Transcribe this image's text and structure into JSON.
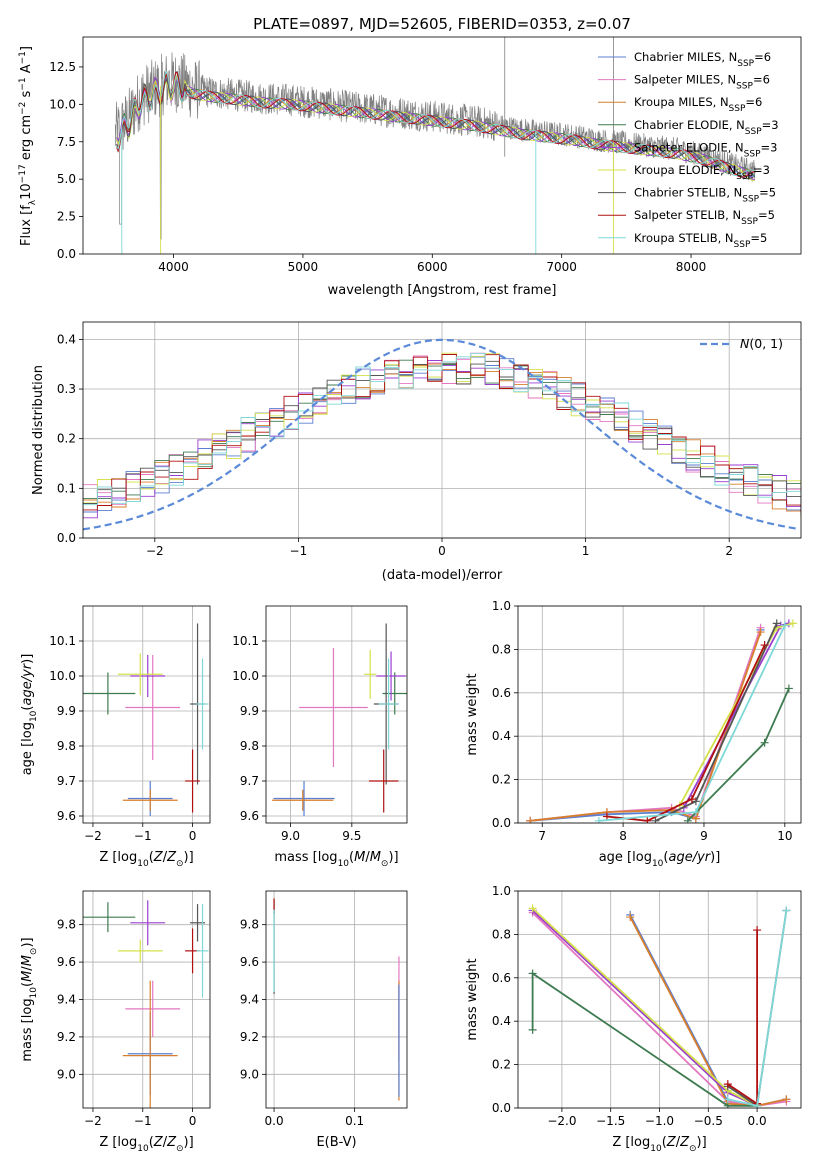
{
  "figure": {
    "title": "PLATE=0897, MJD=52605, FIBERID=0353, z=0.07"
  },
  "colors": {
    "Chabrier MILES": "#5b7fd0",
    "Salpeter MILES": "#e377c2",
    "Kroupa MILES": "#d87f2c",
    "Chabrier ELODIE": "#3e7b50",
    "Salpeter ELODIE": "#9b3fd0",
    "Kroupa ELODIE": "#d4e04a",
    "Chabrier STELIB": "#555555",
    "Salpeter STELIB": "#b01010",
    "Kroupa STELIB": "#7fd8d8",
    "data": "#808080",
    "normal": "#5b8ad8"
  },
  "chart_data": [
    {
      "id": "spectrum",
      "type": "line",
      "title": "PLATE=0897, MJD=52605, FIBERID=0353, z=0.07",
      "xlabel": "wavelength [Angstrom, rest frame]",
      "ylabel": "Flux [f$_\\lambda$10$^{-17}$ erg cm$^{-2}$ s$^{-1}$ A$^{-1}$]",
      "xlim": [
        3300,
        8850
      ],
      "ylim": [
        0,
        14.5
      ],
      "xticks": [
        4000,
        5000,
        6000,
        7000,
        8000
      ],
      "yticks": [
        0.0,
        2.5,
        5.0,
        7.5,
        10.0,
        12.5
      ],
      "legend": "top-right",
      "legend_entries": [
        "Chabrier MILES, N_SSP=6",
        "Salpeter MILES, N_SSP=6",
        "Kroupa MILES, N_SSP=6",
        "Chabrier ELODIE, N_SSP=3",
        "Salpeter ELODIE, N_SSP=3",
        "Kroupa ELODIE, N_SSP=3",
        "Chabrier STELIB, N_SSP=5",
        "Salpeter STELIB, N_SSP=5",
        "Kroupa STELIB, N_SSP=5"
      ],
      "continuum": {
        "x": [
          3550,
          3650,
          3750,
          3850,
          3950,
          4050,
          4150,
          4300,
          4500,
          4700,
          4900,
          5100,
          5300,
          5500,
          5700,
          5900,
          6100,
          6300,
          6500,
          6700,
          6900,
          7100,
          7300,
          7500,
          7700,
          7900,
          8100,
          8300,
          8500
        ],
        "y": [
          8.0,
          9.0,
          10.5,
          11.0,
          11.5,
          11.5,
          11.0,
          10.8,
          10.6,
          10.4,
          10.3,
          10.1,
          9.9,
          9.7,
          9.5,
          9.3,
          9.1,
          8.9,
          8.6,
          8.3,
          8.1,
          7.9,
          7.6,
          7.4,
          7.2,
          7.0,
          6.6,
          6.0,
          5.5
        ]
      }
    },
    {
      "id": "residuals",
      "type": "line",
      "xlabel": "(data-model)/error",
      "ylabel": "Normed distribution",
      "xlim": [
        -2.5,
        2.5
      ],
      "ylim": [
        0,
        0.435
      ],
      "xticks": [
        -2,
        -1,
        0,
        1,
        2
      ],
      "yticks": [
        0.0,
        0.1,
        0.2,
        0.3,
        0.4
      ],
      "legend": "top-right",
      "legend_entries": [
        "N(0,1)"
      ],
      "gaussian": {
        "mean": 0,
        "sigma": 1
      }
    },
    {
      "id": "age_vs_Z",
      "type": "scatter",
      "xlabel": "Z [log10(Z/Z_sun)]",
      "ylabel": "age  [log10(age/yr)]",
      "xlim": [
        -2.2,
        0.35
      ],
      "ylim": [
        9.58,
        10.2
      ],
      "xticks": [
        -2,
        -1,
        0
      ],
      "yticks": [
        9.6,
        9.7,
        9.8,
        9.9,
        10.0,
        10.1
      ],
      "points": [
        {
          "model": "Chabrier MILES",
          "x": -0.85,
          "y": 9.65,
          "xerr": 0.45,
          "yerr": 0.05
        },
        {
          "model": "Salpeter MILES",
          "x": -0.8,
          "y": 9.91,
          "xerr": 0.55,
          "yerr": 0.15
        },
        {
          "model": "Kroupa MILES",
          "x": -0.85,
          "y": 9.645,
          "xerr": 0.55,
          "yerr": 0.03
        },
        {
          "model": "Chabrier ELODIE",
          "x": -1.7,
          "y": 9.95,
          "xerr": 0.55,
          "yerr": 0.06
        },
        {
          "model": "Salpeter ELODIE",
          "x": -0.9,
          "y": 10.0,
          "xerr": 0.35,
          "yerr": 0.06
        },
        {
          "model": "Kroupa ELODIE",
          "x": -1.05,
          "y": 10.005,
          "xerr": 0.45,
          "yerr": 0.06
        },
        {
          "model": "Chabrier STELIB",
          "x": 0.1,
          "y": 9.92,
          "xerr": 0.15,
          "yerr": 0.23
        },
        {
          "model": "Salpeter STELIB",
          "x": 0.0,
          "y": 9.7,
          "xerr": 0.15,
          "yerr": 0.09
        },
        {
          "model": "Kroupa STELIB",
          "x": 0.2,
          "y": 9.92,
          "xerr": 0.12,
          "yerr": 0.13
        }
      ]
    },
    {
      "id": "age_vs_mass",
      "type": "scatter",
      "xlabel": "mass [log10(M/M_sun)]",
      "xlim": [
        8.8,
        9.95
      ],
      "ylim": [
        9.58,
        10.2
      ],
      "xticks": [
        9.0,
        9.5
      ],
      "yticks": [
        9.6,
        9.7,
        9.8,
        9.9,
        10.0,
        10.1
      ],
      "points": [
        {
          "model": "Chabrier MILES",
          "x": 9.11,
          "y": 9.65,
          "xerr": 0.25,
          "yerr": 0.05
        },
        {
          "model": "Salpeter MILES",
          "x": 9.35,
          "y": 9.91,
          "xerr": 0.28,
          "yerr": 0.17
        },
        {
          "model": "Kroupa MILES",
          "x": 9.1,
          "y": 9.645,
          "xerr": 0.25,
          "yerr": 0.03
        },
        {
          "model": "Chabrier ELODIE",
          "x": 9.85,
          "y": 9.95,
          "xerr": 0.1,
          "yerr": 0.06
        },
        {
          "model": "Salpeter ELODIE",
          "x": 9.82,
          "y": 10.0,
          "xerr": 0.12,
          "yerr": 0.07
        },
        {
          "model": "Kroupa ELODIE",
          "x": 9.65,
          "y": 10.005,
          "xerr": 0.05,
          "yerr": 0.07
        },
        {
          "model": "Chabrier STELIB",
          "x": 9.78,
          "y": 9.92,
          "xerr": 0.1,
          "yerr": 0.23
        },
        {
          "model": "Salpeter STELIB",
          "x": 9.76,
          "y": 9.7,
          "xerr": 0.12,
          "yerr": 0.09
        },
        {
          "model": "Kroupa STELIB",
          "x": 9.8,
          "y": 9.92,
          "xerr": 0.08,
          "yerr": 0.13
        }
      ]
    },
    {
      "id": "weight_vs_age",
      "type": "line",
      "xlabel": "age  [log10(age/yr)]",
      "ylabel": "mass weight",
      "xlim": [
        6.7,
        10.2
      ],
      "ylim": [
        0,
        1.0
      ],
      "xticks": [
        7,
        8,
        9,
        10
      ],
      "yticks": [
        0.0,
        0.2,
        0.4,
        0.6,
        0.8,
        1.0
      ],
      "series": [
        {
          "name": "Chabrier MILES",
          "x": [
            6.85,
            7.8,
            8.6,
            8.9,
            9.7
          ],
          "y": [
            0.01,
            0.04,
            0.05,
            0.02,
            0.89
          ]
        },
        {
          "name": "Salpeter MILES",
          "x": [
            6.85,
            7.8,
            8.6,
            8.9,
            9.7
          ],
          "y": [
            0.01,
            0.05,
            0.07,
            0.03,
            0.9
          ]
        },
        {
          "name": "Kroupa MILES",
          "x": [
            6.85,
            7.8,
            8.6,
            8.9,
            9.7
          ],
          "y": [
            0.01,
            0.05,
            0.06,
            0.02,
            0.88
          ]
        },
        {
          "name": "Chabrier ELODIE",
          "x": [
            8.8,
            9.75,
            10.05
          ],
          "y": [
            0.01,
            0.37,
            0.62
          ]
        },
        {
          "name": "Salpeter ELODIE",
          "x": [
            8.75,
            9.95,
            10.05
          ],
          "y": [
            0.07,
            0.91,
            0.92
          ]
        },
        {
          "name": "Kroupa ELODIE",
          "x": [
            8.7,
            9.9,
            10.1
          ],
          "y": [
            0.08,
            0.9,
            0.92
          ]
        },
        {
          "name": "Chabrier STELIB",
          "x": [
            8.4,
            8.9,
            9.9
          ],
          "y": [
            0.01,
            0.1,
            0.92
          ]
        },
        {
          "name": "Salpeter STELIB",
          "x": [
            7.8,
            8.3,
            8.85,
            9.75
          ],
          "y": [
            0.03,
            0.01,
            0.11,
            0.82
          ]
        },
        {
          "name": "Kroupa STELIB",
          "x": [
            7.7,
            8.9,
            10.0
          ],
          "y": [
            0.01,
            0.05,
            0.91
          ]
        }
      ]
    },
    {
      "id": "mass_vs_Z",
      "type": "scatter",
      "xlabel": "Z [log10(Z/Z_sun)]",
      "ylabel": "mass [log10(M/M_sun)]",
      "xlim": [
        -2.2,
        0.35
      ],
      "ylim": [
        8.82,
        9.98
      ],
      "xticks": [
        -2,
        -1,
        0
      ],
      "yticks": [
        9.0,
        9.2,
        9.4,
        9.6,
        9.8
      ],
      "points": [
        {
          "model": "Chabrier MILES",
          "x": -0.85,
          "y": 9.11,
          "xerr": 0.45,
          "yerr": 0.22
        },
        {
          "model": "Salpeter MILES",
          "x": -0.8,
          "y": 9.35,
          "xerr": 0.55,
          "yerr": 0.15
        },
        {
          "model": "Kroupa MILES",
          "x": -0.85,
          "y": 9.1,
          "xerr": 0.55,
          "yerr": 0.4
        },
        {
          "model": "Chabrier ELODIE",
          "x": -1.7,
          "y": 9.84,
          "xerr": 0.55,
          "yerr": 0.08
        },
        {
          "model": "Salpeter ELODIE",
          "x": -0.9,
          "y": 9.81,
          "xerr": 0.35,
          "yerr": 0.12
        },
        {
          "model": "Kroupa ELODIE",
          "x": -1.05,
          "y": 9.66,
          "xerr": 0.45,
          "yerr": 0.06
        },
        {
          "model": "Chabrier STELIB",
          "x": 0.1,
          "y": 9.81,
          "xerr": 0.15,
          "yerr": 0.1
        },
        {
          "model": "Salpeter STELIB",
          "x": 0.0,
          "y": 9.66,
          "xerr": 0.15,
          "yerr": 0.12
        },
        {
          "model": "Kroupa STELIB",
          "x": 0.2,
          "y": 9.66,
          "xerr": 0.12,
          "yerr": 0.25
        }
      ]
    },
    {
      "id": "mass_vs_ebv",
      "type": "scatter",
      "xlabel": "E(B-V)",
      "xlim": [
        -0.01,
        0.165
      ],
      "ylim": [
        8.82,
        9.98
      ],
      "xticks": [
        0.0,
        0.1
      ],
      "yticks": [
        9.0,
        9.2,
        9.4,
        9.6,
        9.8
      ],
      "points": [
        {
          "model": "Chabrier ELODIE",
          "x": 0.0,
          "y": 9.9,
          "xerr": 0,
          "yerr": 0.04
        },
        {
          "model": "Salpeter STELIB",
          "x": 0.0,
          "y": 9.9,
          "xerr": 0,
          "yerr": 0.04
        },
        {
          "model": "Chabrier STELIB",
          "x": 0.0,
          "y": 9.65,
          "xerr": 0,
          "yerr": 0.22
        },
        {
          "model": "Kroupa STELIB",
          "x": 0.0,
          "y": 9.66,
          "xerr": 0,
          "yerr": 0.22
        },
        {
          "model": "Salpeter MILES",
          "x": 0.155,
          "y": 9.35,
          "xerr": 0,
          "yerr": 0.28
        },
        {
          "model": "Kroupa MILES",
          "x": 0.155,
          "y": 9.18,
          "xerr": 0,
          "yerr": 0.32
        },
        {
          "model": "Chabrier MILES",
          "x": 0.155,
          "y": 9.18,
          "xerr": 0,
          "yerr": 0.3
        }
      ]
    },
    {
      "id": "weight_vs_Z",
      "type": "line",
      "xlabel": "Z [log10(Z/Z_sun)]",
      "ylabel": "mass weight",
      "xlim": [
        -2.45,
        0.45
      ],
      "ylim": [
        0,
        1.0
      ],
      "xticks": [
        -2.0,
        -1.5,
        -1.0,
        -0.5,
        0.0
      ],
      "yticks": [
        0.0,
        0.2,
        0.4,
        0.6,
        0.8,
        1.0
      ],
      "series": [
        {
          "name": "Chabrier MILES",
          "x": [
            -1.3,
            -0.3,
            0.0,
            0.3
          ],
          "y": [
            0.89,
            0.03,
            0.01,
            0.04
          ]
        },
        {
          "name": "Salpeter MILES",
          "x": [
            -2.3,
            -0.3,
            0.0,
            0.3
          ],
          "y": [
            0.9,
            0.03,
            0.01,
            0.03
          ]
        },
        {
          "name": "Kroupa MILES",
          "x": [
            -1.3,
            -0.3,
            0.0,
            0.3
          ],
          "y": [
            0.88,
            0.02,
            0.01,
            0.04
          ]
        },
        {
          "name": "Chabrier ELODIE",
          "x": [
            -2.3,
            -2.3,
            -0.3,
            0.0
          ],
          "y": [
            0.36,
            0.62,
            0.01,
            0.01
          ]
        },
        {
          "name": "Salpeter ELODIE",
          "x": [
            -2.3,
            -0.3,
            0.0
          ],
          "y": [
            0.91,
            0.07,
            0.01
          ]
        },
        {
          "name": "Kroupa ELODIE",
          "x": [
            -2.3,
            -0.3,
            0.0
          ],
          "y": [
            0.92,
            0.08,
            0.01
          ]
        },
        {
          "name": "Chabrier STELIB",
          "x": [
            -0.3,
            0.0,
            0.3
          ],
          "y": [
            0.1,
            0.01,
            0.91
          ]
        },
        {
          "name": "Salpeter STELIB",
          "x": [
            -0.3,
            0.0,
            0.0
          ],
          "y": [
            0.11,
            0.02,
            0.82
          ]
        },
        {
          "name": "Kroupa STELIB",
          "x": [
            -0.3,
            0.0,
            0.3
          ],
          "y": [
            0.04,
            0.01,
            0.91
          ]
        }
      ]
    }
  ]
}
